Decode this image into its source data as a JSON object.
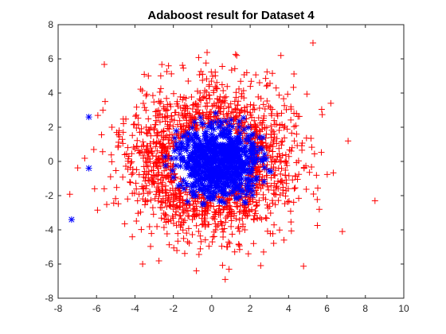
{
  "chart_data": {
    "type": "scatter",
    "title": "Adaboost result for Dataset 4",
    "xlabel": "",
    "ylabel": "",
    "xlim": [
      -8,
      10
    ],
    "ylim": [
      -8,
      8
    ],
    "x_ticks": [
      "-8",
      "-6",
      "-4",
      "-2",
      "0",
      "2",
      "4",
      "6",
      "8",
      "10"
    ],
    "y_ticks": [
      "-8",
      "-6",
      "-4",
      "-2",
      "0",
      "2",
      "4",
      "6",
      "8"
    ],
    "grid": false,
    "legend": "none",
    "series": [
      {
        "marker": "+",
        "color": "#ff0000",
        "distribution": {
          "center": [
            0,
            0
          ],
          "sigma": 2.05,
          "count": 1400,
          "r_min": 2.2
        },
        "points": [
          [
            1.3,
            6.2
          ],
          [
            3.6,
            6.2
          ],
          [
            -3.3,
            5.0
          ],
          [
            8.5,
            -2.3
          ],
          [
            7.1,
            1.2
          ],
          [
            6.8,
            -4.1
          ],
          [
            0.7,
            -6.9
          ],
          [
            -0.8,
            -6.4
          ],
          [
            0.9,
            -6.3
          ],
          [
            -3.6,
            -6.0
          ],
          [
            6.2,
            3.4
          ],
          [
            5.6,
            -2.8
          ],
          [
            -6.1,
            -1.6
          ],
          [
            -5.2,
            2.0
          ],
          [
            -5.6,
            -1.6
          ]
        ]
      },
      {
        "marker": "*",
        "color": "#0000ff",
        "distribution": {
          "center": [
            0.4,
            0
          ],
          "sigma": 1.1,
          "count": 750,
          "r_max": 2.9
        },
        "points": [
          [
            -6.4,
            2.6
          ],
          [
            -6.4,
            -0.4
          ],
          [
            -7.3,
            -3.4
          ]
        ]
      }
    ]
  }
}
